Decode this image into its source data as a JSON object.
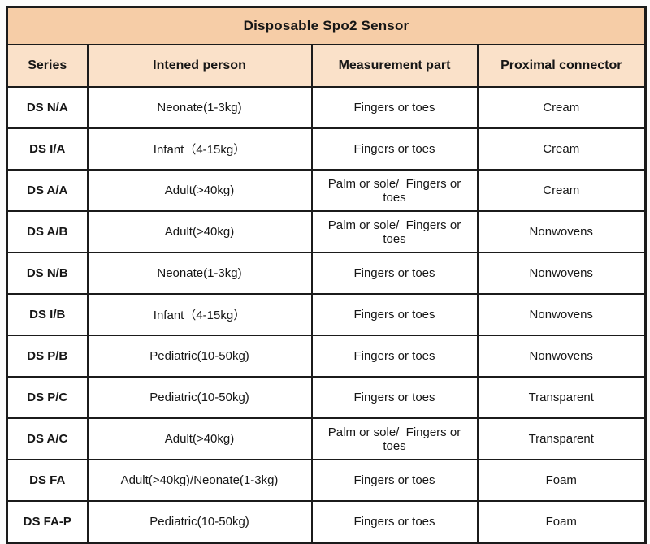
{
  "table": {
    "title": "Disposable Spo2 Sensor",
    "columns": {
      "series": "Series",
      "person": "Intened person",
      "measurement": "Measurement part",
      "connector": "Proximal connector"
    },
    "rows": [
      [
        "DS N/A",
        "Neonate(1-3kg)",
        "Fingers or toes",
        "Cream"
      ],
      [
        "DS I/A",
        "Infant（4-15kg）",
        "Fingers or toes",
        "Cream"
      ],
      [
        "DS A/A",
        "Adult(>40kg)",
        "Palm or sole/  Fingers or toes",
        "Cream"
      ],
      [
        "DS A/B",
        "Adult(>40kg)",
        "Palm or sole/  Fingers or toes",
        "Nonwovens"
      ],
      [
        "DS N/B",
        "Neonate(1-3kg)",
        "Fingers or toes",
        "Nonwovens"
      ],
      [
        "DS I/B",
        "Infant（4-15kg）",
        "Fingers or toes",
        "Nonwovens"
      ],
      [
        "DS P/B",
        "Pediatric(10-50kg)",
        "Fingers or toes",
        "Nonwovens"
      ],
      [
        "DS P/C",
        "Pediatric(10-50kg)",
        "Fingers or toes",
        "Transparent"
      ],
      [
        "DS A/C",
        "Adult(>40kg)",
        "Palm or sole/  Fingers or toes",
        "Transparent"
      ],
      [
        "DS FA",
        "Adult(>40kg)/Neonate(1-3kg)",
        "Fingers or toes",
        "Foam"
      ],
      [
        "DS FA-P",
        "Pediatric(10-50kg)",
        "Fingers or toes",
        "Foam"
      ]
    ],
    "colors": {
      "title_bg": "#f6cda7",
      "header_bg": "#fae1c9",
      "body_bg": "#ffffff",
      "border": "#1b1b1b"
    }
  }
}
